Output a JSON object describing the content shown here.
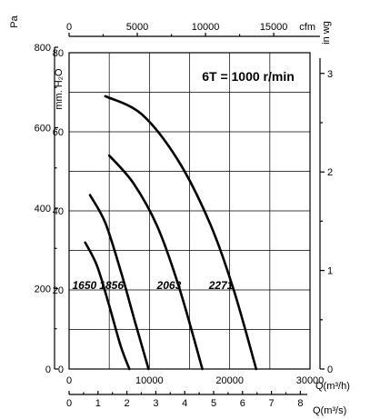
{
  "chart_data": {
    "type": "line",
    "title_box": "6T = 1000 r/min",
    "axes": {
      "left_outer": {
        "label": "Pa",
        "ticks": [
          0,
          200,
          400,
          600,
          800
        ],
        "range": [
          0,
          800
        ]
      },
      "left_inner": {
        "label": "mm. H₂O",
        "ticks": [
          0,
          20,
          40,
          60,
          80
        ],
        "range": [
          0,
          80
        ]
      },
      "right": {
        "label": "in wg",
        "ticks": [
          0,
          1,
          2,
          3
        ],
        "range": [
          0,
          3.21
        ]
      },
      "top": {
        "label": "cfm",
        "ticks": [
          0,
          5000,
          10000,
          15000
        ],
        "range": [
          0,
          17650
        ]
      },
      "bottom_primary": {
        "label": "Q(m³/h)",
        "ticks": [
          0,
          10000,
          20000,
          30000
        ],
        "range": [
          0,
          30000
        ]
      },
      "bottom_secondary": {
        "label": "Q(m³/s)",
        "ticks": [
          0,
          1,
          2,
          3,
          4,
          5,
          6,
          7,
          8
        ],
        "range": [
          0,
          8.333
        ]
      }
    },
    "grid": true,
    "x_unit": "m³/h",
    "y_unit": "mm H₂O",
    "series": [
      {
        "name": "1650",
        "x": [
          2000,
          3500,
          5000,
          6400,
          7500
        ],
        "y": [
          32,
          26,
          16,
          6,
          0
        ]
      },
      {
        "name": "1856",
        "x": [
          2600,
          4500,
          6400,
          8200,
          9900
        ],
        "y": [
          44,
          37,
          25,
          12,
          0
        ]
      },
      {
        "name": "2063",
        "x": [
          5000,
          8000,
          11000,
          13800,
          16600
        ],
        "y": [
          54,
          47,
          36,
          20,
          0
        ]
      },
      {
        "name": "2271",
        "x": [
          4500,
          9000,
          13500,
          17500,
          20500,
          23300
        ],
        "y": [
          69,
          64.5,
          53,
          37,
          20,
          0
        ]
      }
    ]
  }
}
